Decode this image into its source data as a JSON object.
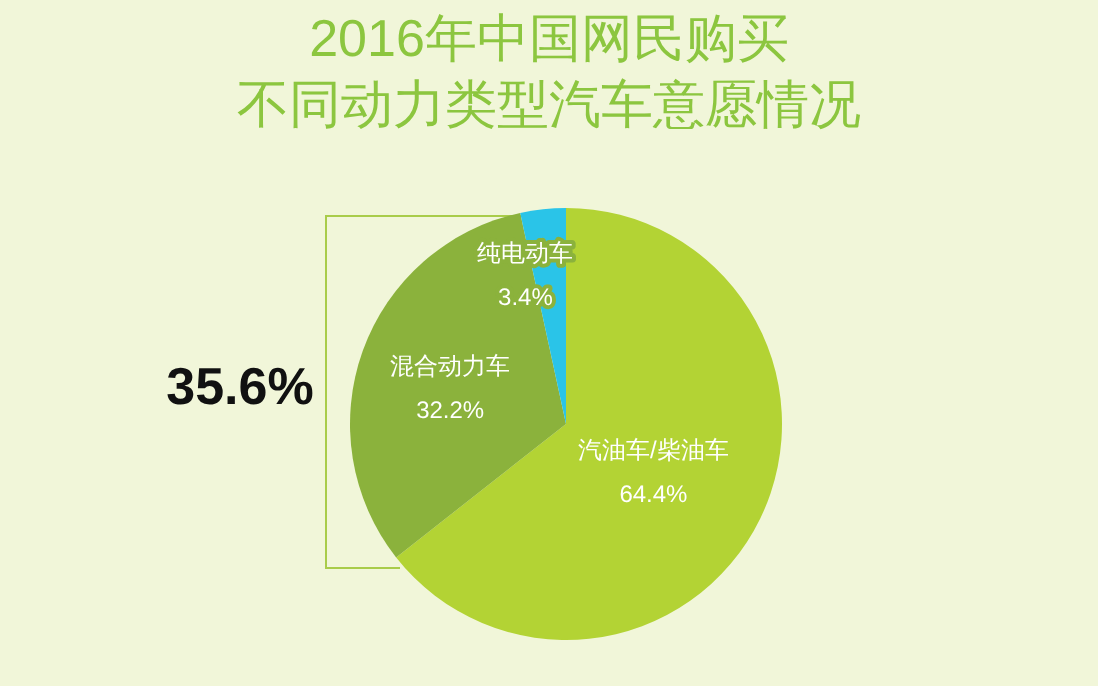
{
  "chart_data": {
    "type": "pie",
    "title": "2016年中国网民购买",
    "subtitle": "不同动力类型汽车意愿情况",
    "categories": [
      "汽油车/柴油车",
      "混合动力车",
      "纯电动车"
    ],
    "values": [
      64.4,
      32.2,
      3.4
    ],
    "colors": [
      "#b3d334",
      "#8bb23c",
      "#2ac4e8"
    ],
    "value_labels": [
      "64.4%",
      "32.2%",
      "3.4%"
    ],
    "annotations": [
      "35.6%"
    ]
  }
}
